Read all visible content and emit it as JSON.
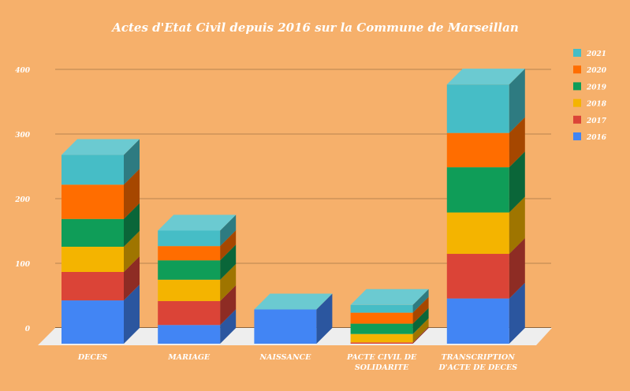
{
  "chart_data": {
    "type": "bar",
    "stacked": true,
    "style": "3d",
    "title": "Actes d'Etat Civil depuis 2016 sur la Commune de Marseillan",
    "xlabel": "",
    "ylabel": "",
    "ylim": [
      0,
      400
    ],
    "yticks": [
      "0",
      "100",
      "200",
      "300",
      "400"
    ],
    "grid": true,
    "legend_position": "right",
    "categories": [
      [
        "DECES"
      ],
      [
        "MARIAGE"
      ],
      [
        "NAISSANCE"
      ],
      [
        "PACTE CIVIL DE",
        "SOLIDARITE"
      ],
      [
        "TRANSCRIPTION",
        "D'ACTE DE DECES"
      ]
    ],
    "series": [
      {
        "name": "2016",
        "color": "#4285f4",
        "values": [
          67,
          29,
          53,
          0,
          70
        ]
      },
      {
        "name": "2017",
        "color": "#db4437",
        "values": [
          44,
          37,
          0,
          2,
          69
        ]
      },
      {
        "name": "2018",
        "color": "#f4b400",
        "values": [
          39,
          33,
          0,
          13,
          64
        ]
      },
      {
        "name": "2019",
        "color": "#0f9d58",
        "values": [
          43,
          30,
          0,
          16,
          70
        ]
      },
      {
        "name": "2020",
        "color": "#ff6d00",
        "values": [
          53,
          22,
          0,
          17,
          53
        ]
      },
      {
        "name": "2021",
        "color": "#46bdc6",
        "values": [
          46,
          24,
          0,
          12,
          75
        ]
      }
    ]
  }
}
